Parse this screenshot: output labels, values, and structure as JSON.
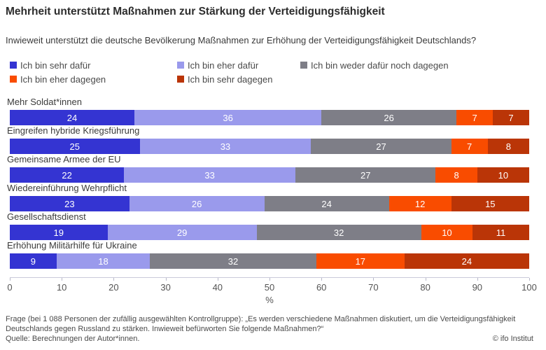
{
  "title": "Mehrheit unterstützt Maßnahmen zur Stärkung der Verteidigungsfähigkeit",
  "subtitle": "Inwieweit unterstützt die deutsche Bevölkerung Maßnahmen zur Erhöhung der Verteidigungsfähigkeit Deutschlands?",
  "chart_data": {
    "type": "bar",
    "stacked": true,
    "orientation": "horizontal",
    "title": "Mehrheit unterstützt Maßnahmen zur Stärkung der Verteidigungsfähigkeit",
    "categories": [
      "Mehr Soldat*innen",
      "Eingreifen hybride Kriegsführung",
      "Gemeinsame Armee der EU",
      "Wiedereinführung Wehrpflicht",
      "Gesellschaftsdienst",
      "Erhöhung Militärhilfe für Ukraine"
    ],
    "series": [
      {
        "name": "Ich bin sehr dafür",
        "color": "#3434d2",
        "values": [
          24,
          25,
          22,
          23,
          19,
          9
        ]
      },
      {
        "name": "Ich bin eher dafür",
        "color": "#9a9aec",
        "values": [
          36,
          33,
          33,
          26,
          29,
          18
        ]
      },
      {
        "name": "Ich bin weder dafür noch dagegen",
        "color": "#7e7e87",
        "values": [
          26,
          27,
          27,
          24,
          32,
          32
        ]
      },
      {
        "name": "Ich bin eher dagegen",
        "color": "#f94c00",
        "values": [
          7,
          7,
          8,
          12,
          10,
          17
        ]
      },
      {
        "name": "Ich bin sehr dagegen",
        "color": "#ba3507",
        "values": [
          7,
          8,
          10,
          15,
          11,
          24
        ]
      }
    ],
    "xlabel": "%",
    "xlim": [
      0,
      100
    ],
    "ticks": [
      0,
      10,
      20,
      30,
      40,
      50,
      60,
      70,
      80,
      90,
      100
    ],
    "grid": false,
    "legend_position": "top",
    "value_labels": true
  },
  "footer": {
    "question": "Frage (bei 1 088 Personen der zufällig ausgewählten Kontrollgruppe): „Es werden verschiedene Maßnahmen diskutiert, um die Verteidigungsfähigkeit Deutschlands gegen Russland zu stärken. Inwieweit befürworten Sie folgende Maßnahmen?“",
    "source": "Quelle: Berechnungen der Autor*innen.",
    "credit": "© ifo Institut"
  }
}
